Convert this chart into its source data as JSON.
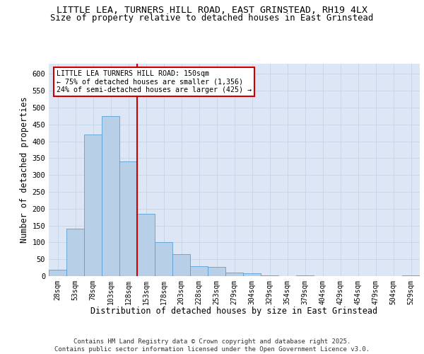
{
  "title_line1": "LITTLE LEA, TURNERS HILL ROAD, EAST GRINSTEAD, RH19 4LX",
  "title_line2": "Size of property relative to detached houses in East Grinstead",
  "xlabel": "Distribution of detached houses by size in East Grinstead",
  "ylabel": "Number of detached properties",
  "categories": [
    "28sqm",
    "53sqm",
    "78sqm",
    "103sqm",
    "128sqm",
    "153sqm",
    "178sqm",
    "203sqm",
    "228sqm",
    "253sqm",
    "279sqm",
    "304sqm",
    "329sqm",
    "354sqm",
    "379sqm",
    "404sqm",
    "429sqm",
    "454sqm",
    "479sqm",
    "504sqm",
    "529sqm"
  ],
  "values": [
    18,
    140,
    420,
    475,
    340,
    185,
    100,
    65,
    30,
    28,
    10,
    8,
    2,
    0,
    2,
    0,
    0,
    0,
    0,
    0,
    2
  ],
  "bar_color": "#b8cfe8",
  "bar_edge_color": "#5a9fd4",
  "grid_color": "#c5d3e8",
  "background_color": "#dce6f5",
  "annotation_text": "LITTLE LEA TURNERS HILL ROAD: 150sqm\n← 75% of detached houses are smaller (1,356)\n24% of semi-detached houses are larger (425) →",
  "footer_line1": "Contains HM Land Registry data © Crown copyright and database right 2025.",
  "footer_line2": "Contains public sector information licensed under the Open Government Licence v3.0.",
  "ylim": [
    0,
    630
  ],
  "yticks": [
    0,
    50,
    100,
    150,
    200,
    250,
    300,
    350,
    400,
    450,
    500,
    550,
    600
  ]
}
